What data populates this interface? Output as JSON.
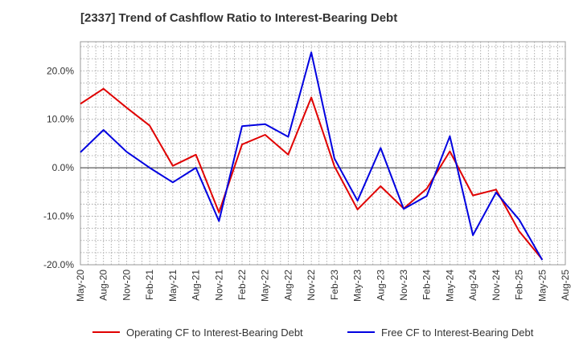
{
  "chart_data": {
    "type": "line",
    "title": "[2337]  Trend of Cashflow Ratio to Interest-Bearing Debt",
    "xlabel": "",
    "ylabel": "",
    "x_ticks": [
      "May-20",
      "Aug-20",
      "Nov-20",
      "Feb-21",
      "May-21",
      "Aug-21",
      "Nov-21",
      "Feb-22",
      "May-22",
      "Aug-22",
      "Nov-22",
      "Feb-23",
      "May-23",
      "Aug-23",
      "Nov-23",
      "Feb-24",
      "May-24",
      "Aug-24",
      "Nov-24",
      "Feb-25",
      "May-25",
      "Aug-25"
    ],
    "y_ticks": [
      "-20.0%",
      "-10.0%",
      "0.0%",
      "10.0%",
      "20.0%"
    ],
    "ylim": [
      -20,
      26
    ],
    "grid": true,
    "legend_position": "bottom",
    "series": [
      {
        "name": "Operating CF to Interest-Bearing Debt",
        "color": "#e00000",
        "values": [
          13.2,
          16.3,
          12.4,
          8.7,
          0.4,
          2.7,
          -9.2,
          4.8,
          6.8,
          2.7,
          14.5,
          0.3,
          -8.6,
          -3.8,
          -8.4,
          -4.3,
          3.4,
          -5.7,
          -4.5,
          -13.1,
          -18.9,
          null
        ]
      },
      {
        "name": "Free CF to Interest-Bearing Debt",
        "color": "#0000e0",
        "values": [
          3.2,
          7.8,
          3.3,
          0.0,
          -3.0,
          0.0,
          -11.0,
          8.6,
          9.0,
          6.4,
          23.8,
          1.9,
          -6.8,
          4.1,
          -8.5,
          -5.8,
          6.5,
          -13.9,
          -5.1,
          -10.7,
          -19.0,
          null
        ]
      }
    ]
  }
}
